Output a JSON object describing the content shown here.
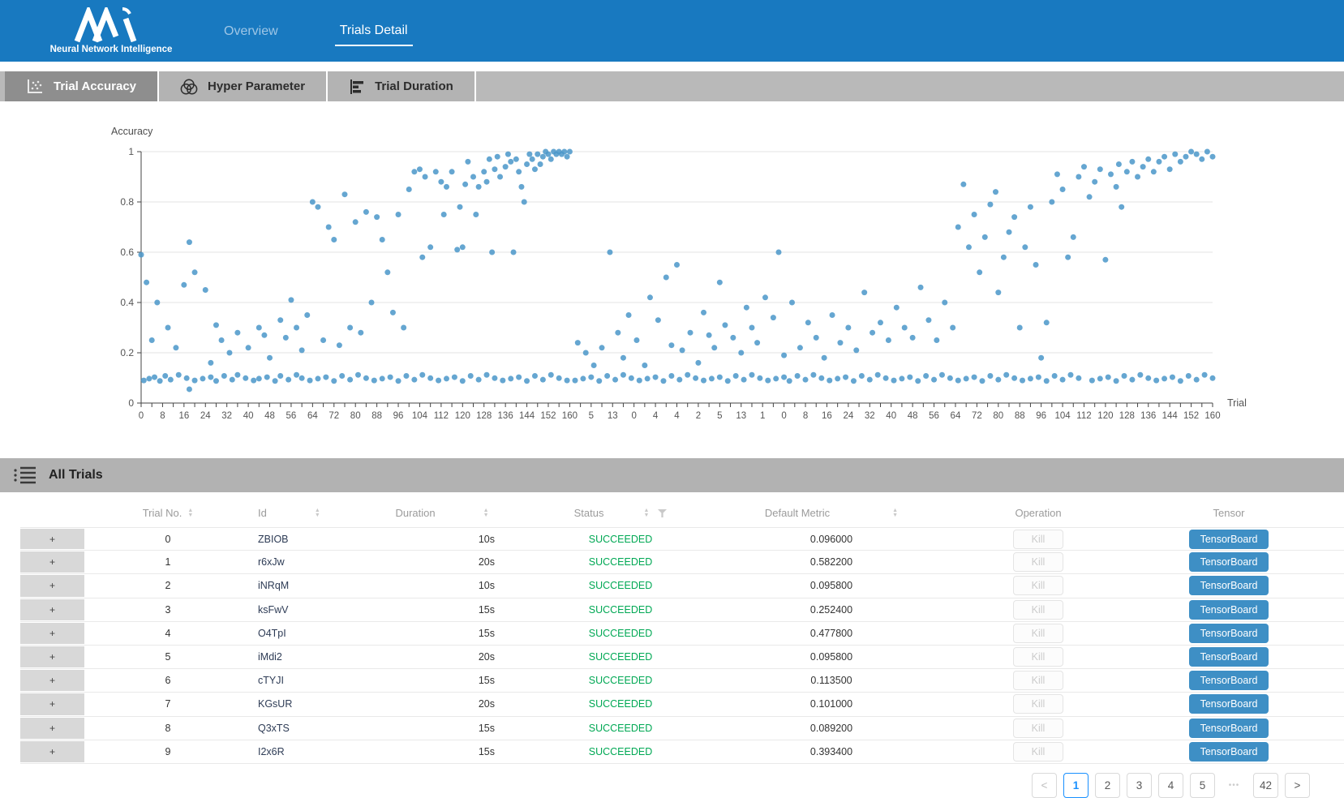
{
  "navbar": {
    "brand_name": "Neural Network Intelligence",
    "bg_color": "#1879c0",
    "tabs": [
      {
        "label": "Overview",
        "active": false
      },
      {
        "label": "Trials Detail",
        "active": true
      }
    ]
  },
  "view_tabs": [
    {
      "label": "Trial Accuracy",
      "icon": "scatter-icon",
      "active": true
    },
    {
      "label": "Hyper Parameter",
      "icon": "venn-icon",
      "active": false
    },
    {
      "label": "Trial Duration",
      "icon": "bar-chart-icon",
      "active": false
    }
  ],
  "chart_data": {
    "type": "scatter",
    "ylabel": "Accuracy",
    "xlabel": "Trial",
    "ylim": [
      0,
      1
    ],
    "y_ticks": [
      0,
      0.2,
      0.4,
      0.6,
      0.8,
      1
    ],
    "x_index_max": 400,
    "x_tick_interval": 8,
    "x_tick_labels": [
      "0",
      "8",
      "16",
      "24",
      "32",
      "40",
      "48",
      "56",
      "64",
      "72",
      "80",
      "88",
      "96",
      "104",
      "112",
      "120",
      "128",
      "136",
      "144",
      "152",
      "160",
      "5",
      "13",
      "0",
      "4",
      "4",
      "2",
      "5",
      "13",
      "1",
      "0",
      "8",
      "16",
      "24",
      "32",
      "40",
      "48",
      "56",
      "64",
      "72",
      "80",
      "88",
      "96",
      "104",
      "112",
      "120",
      "128",
      "136",
      "144",
      "152",
      "160"
    ],
    "point_color": "#4a97c9",
    "grid_color": "#e3e3e3",
    "axis_color": "#444444",
    "points": [
      [
        0,
        0.59
      ],
      [
        2,
        0.48
      ],
      [
        4,
        0.25
      ],
      [
        6,
        0.4
      ],
      [
        10,
        0.3
      ],
      [
        13,
        0.22
      ],
      [
        16,
        0.47
      ],
      [
        18,
        0.055
      ],
      [
        18,
        0.64
      ],
      [
        20,
        0.52
      ],
      [
        24,
        0.45
      ],
      [
        26,
        0.16
      ],
      [
        28,
        0.31
      ],
      [
        30,
        0.25
      ],
      [
        33,
        0.2
      ],
      [
        36,
        0.28
      ],
      [
        40,
        0.22
      ],
      [
        44,
        0.3
      ],
      [
        46,
        0.27
      ],
      [
        48,
        0.18
      ],
      [
        52,
        0.33
      ],
      [
        54,
        0.26
      ],
      [
        56,
        0.41
      ],
      [
        58,
        0.3
      ],
      [
        60,
        0.21
      ],
      [
        62,
        0.35
      ],
      [
        64,
        0.8
      ],
      [
        66,
        0.78
      ],
      [
        68,
        0.25
      ],
      [
        70,
        0.7
      ],
      [
        72,
        0.65
      ],
      [
        74,
        0.23
      ],
      [
        76,
        0.83
      ],
      [
        78,
        0.3
      ],
      [
        80,
        0.72
      ],
      [
        82,
        0.28
      ],
      [
        84,
        0.76
      ],
      [
        86,
        0.4
      ],
      [
        88,
        0.74
      ],
      [
        90,
        0.65
      ],
      [
        92,
        0.52
      ],
      [
        94,
        0.36
      ],
      [
        96,
        0.75
      ],
      [
        98,
        0.3
      ],
      [
        100,
        0.85
      ],
      [
        102,
        0.92
      ],
      [
        104,
        0.93
      ],
      [
        105,
        0.58
      ],
      [
        106,
        0.9
      ],
      [
        108,
        0.62
      ],
      [
        110,
        0.92
      ],
      [
        112,
        0.88
      ],
      [
        113,
        0.75
      ],
      [
        114,
        0.86
      ],
      [
        116,
        0.92
      ],
      [
        118,
        0.61
      ],
      [
        119,
        0.78
      ],
      [
        120,
        0.62
      ],
      [
        121,
        0.87
      ],
      [
        122,
        0.96
      ],
      [
        124,
        0.9
      ],
      [
        125,
        0.75
      ],
      [
        126,
        0.86
      ],
      [
        128,
        0.92
      ],
      [
        129,
        0.88
      ],
      [
        130,
        0.97
      ],
      [
        131,
        0.6
      ],
      [
        132,
        0.93
      ],
      [
        133,
        0.98
      ],
      [
        134,
        0.9
      ],
      [
        136,
        0.94
      ],
      [
        137,
        0.99
      ],
      [
        138,
        0.96
      ],
      [
        139,
        0.6
      ],
      [
        140,
        0.97
      ],
      [
        141,
        0.92
      ],
      [
        142,
        0.86
      ],
      [
        143,
        0.8
      ],
      [
        144,
        0.95
      ],
      [
        145,
        0.99
      ],
      [
        146,
        0.97
      ],
      [
        147,
        0.93
      ],
      [
        148,
        0.99
      ],
      [
        149,
        0.95
      ],
      [
        150,
        0.98
      ],
      [
        151,
        1.0
      ],
      [
        152,
        0.99
      ],
      [
        153,
        0.97
      ],
      [
        154,
        1.0
      ],
      [
        155,
        0.99
      ],
      [
        156,
        1.0
      ],
      [
        157,
        0.99
      ],
      [
        158,
        1.0
      ],
      [
        159,
        0.98
      ],
      [
        160,
        1.0
      ],
      [
        163,
        0.24
      ],
      [
        166,
        0.2
      ],
      [
        169,
        0.15
      ],
      [
        172,
        0.22
      ],
      [
        175,
        0.6
      ],
      [
        178,
        0.28
      ],
      [
        180,
        0.18
      ],
      [
        182,
        0.35
      ],
      [
        185,
        0.25
      ],
      [
        188,
        0.15
      ],
      [
        190,
        0.42
      ],
      [
        193,
        0.33
      ],
      [
        196,
        0.5
      ],
      [
        198,
        0.23
      ],
      [
        200,
        0.55
      ],
      [
        202,
        0.21
      ],
      [
        205,
        0.28
      ],
      [
        208,
        0.16
      ],
      [
        210,
        0.36
      ],
      [
        212,
        0.27
      ],
      [
        214,
        0.22
      ],
      [
        216,
        0.48
      ],
      [
        218,
        0.31
      ],
      [
        221,
        0.26
      ],
      [
        224,
        0.2
      ],
      [
        226,
        0.38
      ],
      [
        228,
        0.3
      ],
      [
        230,
        0.24
      ],
      [
        233,
        0.42
      ],
      [
        236,
        0.34
      ],
      [
        238,
        0.6
      ],
      [
        240,
        0.19
      ],
      [
        243,
        0.4
      ],
      [
        246,
        0.22
      ],
      [
        249,
        0.32
      ],
      [
        252,
        0.26
      ],
      [
        255,
        0.18
      ],
      [
        258,
        0.35
      ],
      [
        261,
        0.24
      ],
      [
        264,
        0.3
      ],
      [
        267,
        0.21
      ],
      [
        270,
        0.44
      ],
      [
        273,
        0.28
      ],
      [
        276,
        0.32
      ],
      [
        279,
        0.25
      ],
      [
        282,
        0.38
      ],
      [
        285,
        0.3
      ],
      [
        288,
        0.26
      ],
      [
        291,
        0.46
      ],
      [
        294,
        0.33
      ],
      [
        297,
        0.25
      ],
      [
        300,
        0.4
      ],
      [
        303,
        0.3
      ],
      [
        305,
        0.7
      ],
      [
        307,
        0.87
      ],
      [
        309,
        0.62
      ],
      [
        311,
        0.75
      ],
      [
        313,
        0.52
      ],
      [
        315,
        0.66
      ],
      [
        317,
        0.79
      ],
      [
        319,
        0.84
      ],
      [
        320,
        0.44
      ],
      [
        322,
        0.58
      ],
      [
        324,
        0.68
      ],
      [
        326,
        0.74
      ],
      [
        328,
        0.3
      ],
      [
        330,
        0.62
      ],
      [
        332,
        0.78
      ],
      [
        334,
        0.55
      ],
      [
        336,
        0.18
      ],
      [
        338,
        0.32
      ],
      [
        340,
        0.8
      ],
      [
        342,
        0.91
      ],
      [
        344,
        0.85
      ],
      [
        346,
        0.58
      ],
      [
        348,
        0.66
      ],
      [
        350,
        0.9
      ],
      [
        352,
        0.94
      ],
      [
        354,
        0.82
      ],
      [
        356,
        0.88
      ],
      [
        358,
        0.93
      ],
      [
        360,
        0.57
      ],
      [
        362,
        0.91
      ],
      [
        364,
        0.86
      ],
      [
        365,
        0.95
      ],
      [
        366,
        0.78
      ],
      [
        368,
        0.92
      ],
      [
        370,
        0.96
      ],
      [
        372,
        0.9
      ],
      [
        374,
        0.94
      ],
      [
        376,
        0.97
      ],
      [
        378,
        0.92
      ],
      [
        380,
        0.96
      ],
      [
        382,
        0.98
      ],
      [
        384,
        0.93
      ],
      [
        386,
        0.99
      ],
      [
        388,
        0.96
      ],
      [
        390,
        0.98
      ],
      [
        392,
        1.0
      ],
      [
        394,
        0.99
      ],
      [
        396,
        0.97
      ],
      [
        398,
        1.0
      ],
      [
        400,
        0.98
      ],
      [
        1,
        0.09
      ],
      [
        3,
        0.097
      ],
      [
        5,
        0.103
      ],
      [
        7,
        0.088
      ],
      [
        9,
        0.108
      ],
      [
        11,
        0.093
      ],
      [
        14,
        0.112
      ],
      [
        17,
        0.099
      ],
      [
        20,
        0.09
      ],
      [
        23,
        0.097
      ],
      [
        26,
        0.103
      ],
      [
        28,
        0.088
      ],
      [
        31,
        0.108
      ],
      [
        34,
        0.093
      ],
      [
        36,
        0.112
      ],
      [
        39,
        0.099
      ],
      [
        42,
        0.09
      ],
      [
        44,
        0.097
      ],
      [
        47,
        0.103
      ],
      [
        50,
        0.088
      ],
      [
        52,
        0.108
      ],
      [
        55,
        0.093
      ],
      [
        58,
        0.112
      ],
      [
        60,
        0.099
      ],
      [
        63,
        0.09
      ],
      [
        66,
        0.097
      ],
      [
        69,
        0.103
      ],
      [
        72,
        0.088
      ],
      [
        75,
        0.108
      ],
      [
        78,
        0.093
      ],
      [
        81,
        0.112
      ],
      [
        84,
        0.099
      ],
      [
        87,
        0.09
      ],
      [
        90,
        0.097
      ],
      [
        93,
        0.103
      ],
      [
        96,
        0.088
      ],
      [
        99,
        0.108
      ],
      [
        102,
        0.093
      ],
      [
        105,
        0.112
      ],
      [
        108,
        0.099
      ],
      [
        111,
        0.09
      ],
      [
        114,
        0.097
      ],
      [
        117,
        0.103
      ],
      [
        120,
        0.088
      ],
      [
        123,
        0.108
      ],
      [
        126,
        0.093
      ],
      [
        129,
        0.112
      ],
      [
        132,
        0.099
      ],
      [
        135,
        0.09
      ],
      [
        138,
        0.097
      ],
      [
        141,
        0.103
      ],
      [
        144,
        0.088
      ],
      [
        147,
        0.108
      ],
      [
        150,
        0.093
      ],
      [
        153,
        0.112
      ],
      [
        156,
        0.099
      ],
      [
        159,
        0.09
      ],
      [
        162,
        0.09
      ],
      [
        165,
        0.097
      ],
      [
        168,
        0.103
      ],
      [
        171,
        0.088
      ],
      [
        174,
        0.108
      ],
      [
        177,
        0.093
      ],
      [
        180,
        0.112
      ],
      [
        183,
        0.099
      ],
      [
        186,
        0.09
      ],
      [
        189,
        0.097
      ],
      [
        192,
        0.103
      ],
      [
        195,
        0.088
      ],
      [
        198,
        0.108
      ],
      [
        201,
        0.093
      ],
      [
        204,
        0.112
      ],
      [
        207,
        0.099
      ],
      [
        210,
        0.09
      ],
      [
        213,
        0.097
      ],
      [
        216,
        0.103
      ],
      [
        219,
        0.088
      ],
      [
        222,
        0.108
      ],
      [
        225,
        0.093
      ],
      [
        228,
        0.112
      ],
      [
        231,
        0.099
      ],
      [
        234,
        0.09
      ],
      [
        237,
        0.097
      ],
      [
        240,
        0.103
      ],
      [
        242,
        0.088
      ],
      [
        245,
        0.108
      ],
      [
        248,
        0.093
      ],
      [
        251,
        0.112
      ],
      [
        254,
        0.099
      ],
      [
        257,
        0.09
      ],
      [
        260,
        0.097
      ],
      [
        263,
        0.103
      ],
      [
        266,
        0.088
      ],
      [
        269,
        0.108
      ],
      [
        272,
        0.093
      ],
      [
        275,
        0.112
      ],
      [
        278,
        0.099
      ],
      [
        281,
        0.09
      ],
      [
        284,
        0.097
      ],
      [
        287,
        0.103
      ],
      [
        290,
        0.088
      ],
      [
        293,
        0.108
      ],
      [
        296,
        0.093
      ],
      [
        299,
        0.112
      ],
      [
        302,
        0.099
      ],
      [
        305,
        0.09
      ],
      [
        308,
        0.097
      ],
      [
        311,
        0.103
      ],
      [
        314,
        0.088
      ],
      [
        317,
        0.108
      ],
      [
        320,
        0.093
      ],
      [
        323,
        0.112
      ],
      [
        326,
        0.099
      ],
      [
        329,
        0.09
      ],
      [
        332,
        0.097
      ],
      [
        335,
        0.103
      ],
      [
        338,
        0.088
      ],
      [
        341,
        0.108
      ],
      [
        344,
        0.093
      ],
      [
        347,
        0.112
      ],
      [
        350,
        0.099
      ],
      [
        355,
        0.09
      ],
      [
        358,
        0.097
      ],
      [
        361,
        0.103
      ],
      [
        364,
        0.088
      ],
      [
        367,
        0.108
      ],
      [
        370,
        0.093
      ],
      [
        373,
        0.112
      ],
      [
        376,
        0.099
      ],
      [
        379,
        0.09
      ],
      [
        382,
        0.097
      ],
      [
        385,
        0.103
      ],
      [
        388,
        0.088
      ],
      [
        391,
        0.108
      ],
      [
        394,
        0.093
      ],
      [
        397,
        0.112
      ],
      [
        400,
        0.099
      ]
    ]
  },
  "trials_section": {
    "title": "All Trials"
  },
  "table": {
    "expander_symbol": "+",
    "kill_label": "Kill",
    "tensorboard_label": "TensorBoard",
    "status_color": "#00a854",
    "tensorboard_color": "#3e8fc5",
    "columns": [
      {
        "label": "Trial No.",
        "sortable": true
      },
      {
        "label": "Id",
        "sortable": true
      },
      {
        "label": "Duration",
        "sortable": true
      },
      {
        "label": "Status",
        "sortable": true,
        "filterable": true
      },
      {
        "label": "Default Metric",
        "sortable": true
      },
      {
        "label": "Operation",
        "sortable": false
      },
      {
        "label": "Tensor",
        "sortable": false
      }
    ],
    "rows": [
      {
        "trial_no": "0",
        "id": "ZBIOB",
        "duration": "10s",
        "status": "SUCCEEDED",
        "default_metric": "0.096000"
      },
      {
        "trial_no": "1",
        "id": "r6xJw",
        "duration": "20s",
        "status": "SUCCEEDED",
        "default_metric": "0.582200"
      },
      {
        "trial_no": "2",
        "id": "iNRqM",
        "duration": "10s",
        "status": "SUCCEEDED",
        "default_metric": "0.095800"
      },
      {
        "trial_no": "3",
        "id": "ksFwV",
        "duration": "15s",
        "status": "SUCCEEDED",
        "default_metric": "0.252400"
      },
      {
        "trial_no": "4",
        "id": "O4TpI",
        "duration": "15s",
        "status": "SUCCEEDED",
        "default_metric": "0.477800"
      },
      {
        "trial_no": "5",
        "id": "iMdi2",
        "duration": "20s",
        "status": "SUCCEEDED",
        "default_metric": "0.095800"
      },
      {
        "trial_no": "6",
        "id": "cTYJI",
        "duration": "15s",
        "status": "SUCCEEDED",
        "default_metric": "0.113500"
      },
      {
        "trial_no": "7",
        "id": "KGsUR",
        "duration": "20s",
        "status": "SUCCEEDED",
        "default_metric": "0.101000"
      },
      {
        "trial_no": "8",
        "id": "Q3xTS",
        "duration": "15s",
        "status": "SUCCEEDED",
        "default_metric": "0.089200"
      },
      {
        "trial_no": "9",
        "id": "I2x6R",
        "duration": "15s",
        "status": "SUCCEEDED",
        "default_metric": "0.393400"
      }
    ]
  },
  "pagination": {
    "items": [
      {
        "type": "prev",
        "label": "<"
      },
      {
        "type": "page",
        "label": "1",
        "active": true
      },
      {
        "type": "page",
        "label": "2"
      },
      {
        "type": "page",
        "label": "3"
      },
      {
        "type": "page",
        "label": "4"
      },
      {
        "type": "page",
        "label": "5"
      },
      {
        "type": "ellipsis",
        "label": "•••"
      },
      {
        "type": "page",
        "label": "42"
      },
      {
        "type": "next",
        "label": ">"
      }
    ]
  }
}
